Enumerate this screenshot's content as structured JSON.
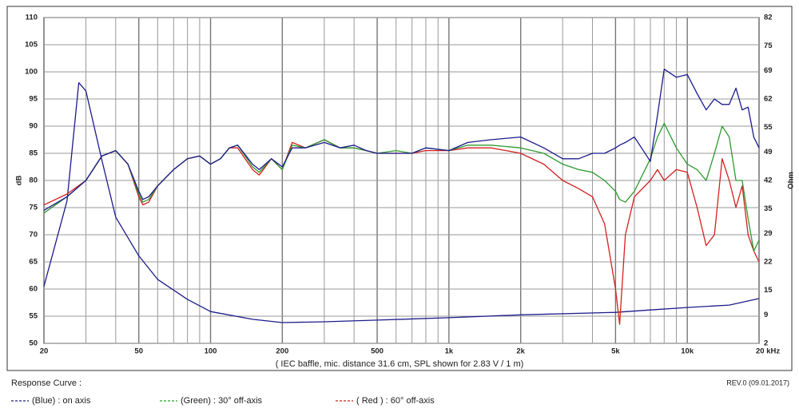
{
  "chart_data": {
    "type": "line",
    "subtitle": "( IEC baffle, mic. distance 31.6 cm, SPL shown for 2.83 V / 1 m)",
    "legend_title": "Response Curve :",
    "note": "REV.0 (09.01.2017)",
    "y_label": "dB",
    "y2_label": "Ohm",
    "xscale": "log",
    "grid": true,
    "xlim": [
      20,
      20000
    ],
    "xticks": [
      20,
      50,
      100,
      200,
      500,
      {
        "value": 1000,
        "label": "1k"
      },
      {
        "value": 2000,
        "label": "2k"
      },
      {
        "value": 5000,
        "label": "5k"
      },
      {
        "value": 10000,
        "label": "10k"
      },
      {
        "value": 20000,
        "label": "20 kHz"
      }
    ],
    "xgrid": [
      30,
      40,
      60,
      70,
      80,
      90,
      300,
      400,
      600,
      700,
      800,
      900,
      3000,
      4000,
      6000,
      7000,
      8000,
      9000
    ],
    "ylim": [
      50,
      110
    ],
    "yticks": [
      50,
      55,
      60,
      65,
      70,
      75,
      80,
      85,
      90,
      95,
      100,
      105,
      110
    ],
    "y2lim": [
      2,
      82
    ],
    "y2ticks": [
      2,
      9,
      15,
      22,
      29,
      35,
      42,
      49,
      55,
      62,
      69,
      75,
      82
    ],
    "x": [
      20,
      25,
      30,
      35,
      40,
      45,
      50,
      52,
      55,
      60,
      70,
      80,
      90,
      100,
      110,
      120,
      130,
      150,
      160,
      180,
      200,
      220,
      250,
      300,
      350,
      400,
      450,
      500,
      600,
      700,
      800,
      1000,
      1200,
      1500,
      2000,
      2500,
      3000,
      3500,
      4000,
      4500,
      5000,
      5200,
      5500,
      6000,
      7000,
      7500,
      8000,
      9000,
      10000,
      11000,
      12000,
      13000,
      14000,
      15000,
      16000,
      17000,
      18000,
      19000,
      20000
    ],
    "series": [
      {
        "name": "(Blue) : on axis",
        "color": "#1c1c8c",
        "values": [
          74.5,
          77,
          80,
          84.5,
          85.5,
          83,
          78,
          76.5,
          77,
          79,
          82,
          84,
          84.5,
          83,
          84,
          86,
          86.5,
          83,
          82,
          84,
          82.5,
          86,
          86,
          87,
          86,
          86.5,
          85.5,
          85,
          85,
          85,
          86,
          85.5,
          87,
          87.5,
          88,
          86,
          84,
          84,
          85,
          85,
          86,
          86.5,
          87,
          88,
          83.5,
          92,
          100.5,
          99,
          99.5,
          96,
          93,
          95,
          94,
          94,
          97,
          93,
          93.5,
          88,
          86
        ]
      },
      {
        "name": "(Green) : 30° off-axis",
        "color": "#2e9a2e",
        "values": [
          74,
          77,
          80,
          84.5,
          85.5,
          83,
          77.5,
          76,
          76.5,
          79,
          82,
          84,
          84.5,
          83,
          84,
          86,
          86.5,
          82.5,
          81.5,
          84,
          82,
          86.5,
          86,
          87.5,
          86,
          86,
          85.5,
          85,
          85.5,
          85,
          86,
          85.5,
          86.5,
          86.5,
          86,
          85,
          83,
          82,
          81.5,
          80,
          78,
          76.5,
          76,
          78,
          84,
          88,
          90.5,
          86,
          83,
          82,
          80,
          85,
          90,
          88,
          80,
          80,
          73,
          67,
          69
        ]
      },
      {
        "name": "( Red ) : 60° off-axis",
        "color": "#d42020",
        "values": [
          75.5,
          77.5,
          80,
          84.5,
          85.5,
          83,
          77,
          75.5,
          76,
          79,
          82,
          84,
          84.5,
          83,
          84,
          86,
          86,
          82,
          81,
          84,
          82,
          87,
          86,
          87.5,
          86,
          86,
          85.5,
          85,
          85,
          85,
          85.5,
          85.5,
          86,
          86,
          85,
          83,
          80,
          78.5,
          77,
          72,
          60,
          53.5,
          70,
          77,
          80,
          82,
          80,
          82,
          81.5,
          75,
          68,
          70,
          84,
          80,
          75,
          79,
          70,
          67,
          65
        ]
      },
      {
        "color": "#1c1c8c",
        "axis": "y2",
        "x": [
          20,
          25,
          28,
          30,
          35,
          40,
          50,
          60,
          80,
          100,
          150,
          200,
          300,
          500,
          1000,
          2000,
          5000,
          7000,
          10000,
          15000,
          20000
        ],
        "values": [
          16,
          37,
          66,
          64,
          47,
          33,
          23.5,
          17.7,
          12.8,
          9.8,
          7.9,
          7.1,
          7.3,
          7.7,
          8.3,
          9,
          9.6,
          10.2,
          10.8,
          11.4,
          13
        ]
      }
    ]
  }
}
